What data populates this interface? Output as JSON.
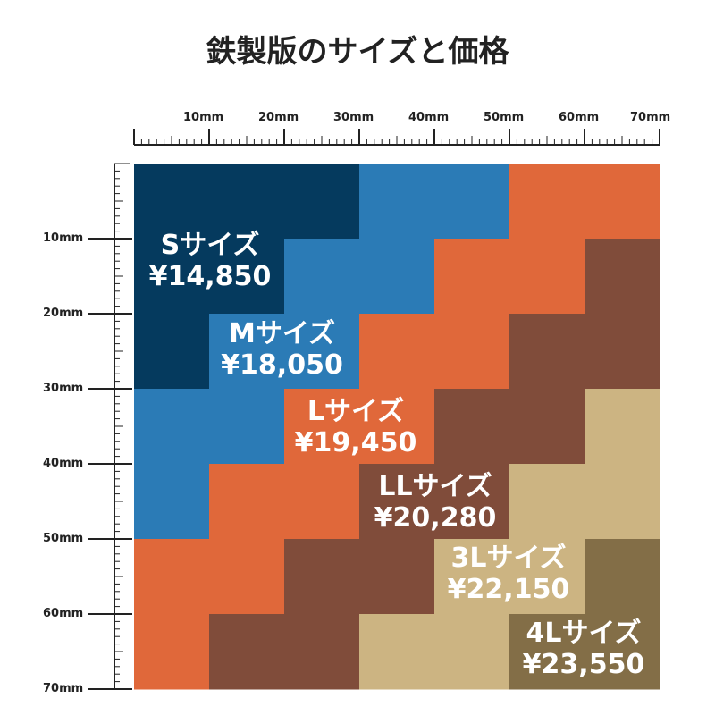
{
  "title": "鉄製版のサイズと価格",
  "ruler": {
    "top_labels": [
      "10mm",
      "20mm",
      "30mm",
      "40mm",
      "50mm",
      "60mm",
      "70mm"
    ],
    "left_labels": [
      "10mm",
      "20mm",
      "30mm",
      "40mm",
      "50mm",
      "60mm",
      "70mm"
    ]
  },
  "colors": {
    "S": "#053a5e",
    "M": "#2b7bb6",
    "L": "#e0683a",
    "LL": "#804c3a",
    "3L": "#ccb482",
    "4L": "#836e47"
  },
  "sizes": [
    {
      "key": "S",
      "name": "Sサイズ",
      "price": "¥14,850"
    },
    {
      "key": "M",
      "name": "Mサイズ",
      "price": "¥18,050"
    },
    {
      "key": "L",
      "name": "Lサイズ",
      "price": "¥19,450"
    },
    {
      "key": "LL",
      "name": "LLサイズ",
      "price": "¥20,280"
    },
    {
      "key": "3L",
      "name": "3Lサイズ",
      "price": "¥22,150"
    },
    {
      "key": "4L",
      "name": "4Lサイズ",
      "price": "¥23,550"
    }
  ]
}
